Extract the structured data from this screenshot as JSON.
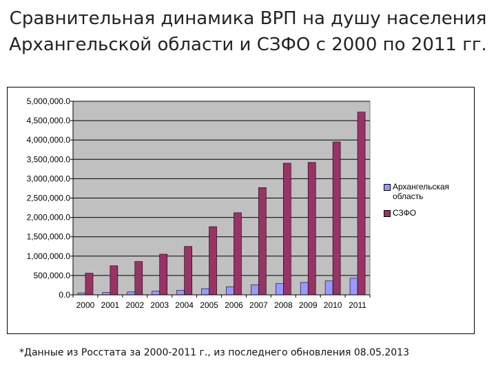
{
  "title_line1": "Сравнительная динамика ВРП на душу населения",
  "title_line2": "Архангельской области и СЗФО с 2000 по 2011 гг.",
  "footnote": "*Данные из Росстата за 2000-2011 г., из последнего обновления 08.05.2013",
  "colors": {
    "series1": "#9999ff",
    "series2": "#993366",
    "plot_bg": "#c0c0c0",
    "grid": "#000000"
  },
  "chart_data": {
    "type": "bar",
    "categories": [
      "2000",
      "2001",
      "2002",
      "2003",
      "2004",
      "2005",
      "2006",
      "2007",
      "2008",
      "2009",
      "2010",
      "2011"
    ],
    "series": [
      {
        "name": "Архангельская область",
        "values": [
          50000,
          60000,
          75000,
          95000,
          120000,
          160000,
          210000,
          260000,
          290000,
          320000,
          360000,
          430000
        ]
      },
      {
        "name": "СЗФО",
        "values": [
          560000,
          750000,
          860000,
          1050000,
          1250000,
          1760000,
          2120000,
          2770000,
          3400000,
          3420000,
          3950000,
          4720000
        ]
      }
    ],
    "ylim": [
      0,
      5000000
    ],
    "yticks": [
      0,
      500000,
      1000000,
      1500000,
      2000000,
      2500000,
      3000000,
      3500000,
      4000000,
      4500000,
      5000000
    ],
    "ytick_labels": [
      "0.0",
      "500,000.0",
      "1,000,000.0",
      "1,500,000.0",
      "2,000,000.0",
      "2,500,000.0",
      "3,000,000.0",
      "3,500,000.0",
      "4,000,000.0",
      "4,500,000.0",
      "5,000,000.0"
    ],
    "grid": true,
    "legend_position": "right"
  }
}
